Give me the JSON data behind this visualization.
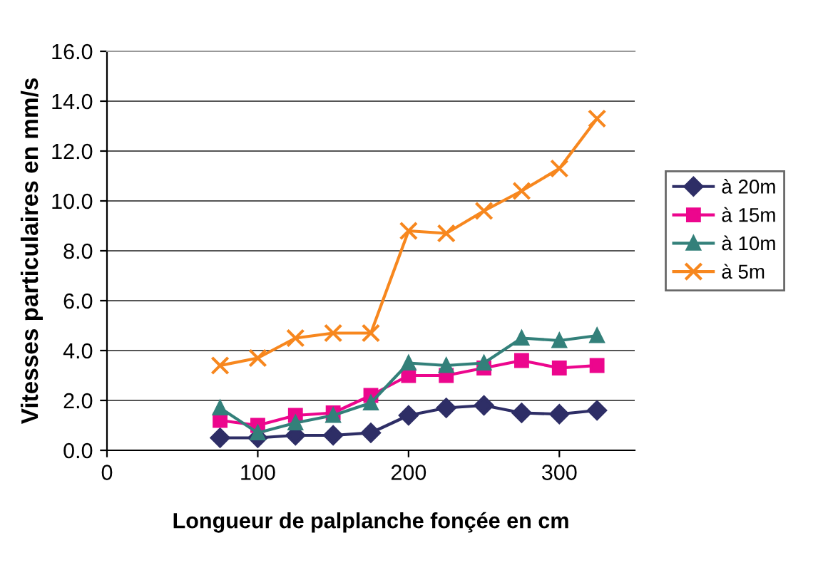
{
  "chart_data": {
    "type": "line",
    "xlabel": "Longueur de palplanche fonçée en cm",
    "ylabel": "Vitesses particulaires en mm/s",
    "x": [
      75,
      100,
      125,
      150,
      175,
      200,
      225,
      250,
      275,
      300,
      325
    ],
    "series": [
      {
        "name": "à 20m",
        "color": "#2e2e66",
        "marker": "diamond",
        "values": [
          0.5,
          0.5,
          0.6,
          0.6,
          0.7,
          1.4,
          1.7,
          1.8,
          1.5,
          1.45,
          1.6
        ]
      },
      {
        "name": "à 15m",
        "color": "#ec068d",
        "marker": "square",
        "values": [
          1.2,
          1.0,
          1.4,
          1.5,
          2.2,
          3.0,
          3.0,
          3.3,
          3.6,
          3.3,
          3.4
        ]
      },
      {
        "name": "à 10m",
        "color": "#33807a",
        "marker": "triangle",
        "values": [
          1.7,
          0.7,
          1.1,
          1.4,
          1.9,
          3.5,
          3.4,
          3.5,
          4.5,
          4.4,
          4.6
        ]
      },
      {
        "name": "à 5m",
        "color": "#f7871e",
        "marker": "cross",
        "values": [
          3.4,
          3.7,
          4.5,
          4.7,
          4.7,
          8.8,
          8.7,
          9.6,
          10.4,
          11.3,
          13.3
        ]
      }
    ],
    "xlim": [
      0,
      350
    ],
    "xticks": [
      0,
      100,
      200,
      300
    ],
    "ylim": [
      0,
      16
    ],
    "yticks": [
      {
        "value": 0,
        "label": "0.0"
      },
      {
        "value": 2,
        "label": "2.0"
      },
      {
        "value": 4,
        "label": "4.0"
      },
      {
        "value": 6,
        "label": "6.0"
      },
      {
        "value": 8,
        "label": "8.0"
      },
      {
        "value": 10,
        "label": "10.0"
      },
      {
        "value": 12,
        "label": "12.0"
      },
      {
        "value": 14,
        "label": "14.0"
      },
      {
        "value": 16,
        "label": "16.0"
      }
    ],
    "grid": "y",
    "legend": "right"
  }
}
